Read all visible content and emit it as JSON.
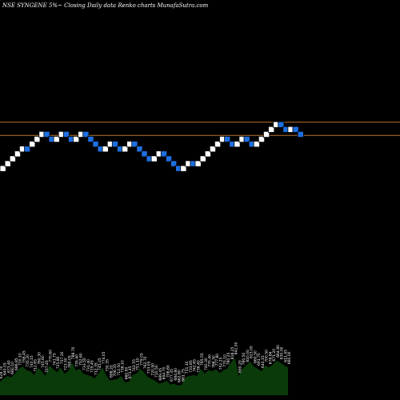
{
  "chart_data": {
    "type": "renko",
    "title": "NSE SYNGENE 5%~   Closing Daily data  Renko  charts MunafaSutra.com",
    "colors": {
      "background": "#000000",
      "up_brick": "#ffffff",
      "down_brick": "#1e6fe0",
      "brick_border": "#000000",
      "hlines": "#b8742a",
      "volume_fill": "#0a3a0a",
      "text": "#ffffff"
    },
    "bricks": [
      {
        "dir": "up",
        "level": 0
      },
      {
        "dir": "up",
        "level": 1
      },
      {
        "dir": "up",
        "level": 2
      },
      {
        "dir": "up",
        "level": 3
      },
      {
        "dir": "up",
        "level": 4
      },
      {
        "dir": "down",
        "level": 4
      },
      {
        "dir": "up",
        "level": 5
      },
      {
        "dir": "up",
        "level": 6
      },
      {
        "dir": "up",
        "level": 7
      },
      {
        "dir": "down",
        "level": 7
      },
      {
        "dir": "down",
        "level": 6
      },
      {
        "dir": "up",
        "level": 6
      },
      {
        "dir": "up",
        "level": 7
      },
      {
        "dir": "down",
        "level": 7
      },
      {
        "dir": "down",
        "level": 6
      },
      {
        "dir": "up",
        "level": 6
      },
      {
        "dir": "up",
        "level": 7
      },
      {
        "dir": "down",
        "level": 7
      },
      {
        "dir": "down",
        "level": 6
      },
      {
        "dir": "down",
        "level": 5
      },
      {
        "dir": "down",
        "level": 4
      },
      {
        "dir": "up",
        "level": 4
      },
      {
        "dir": "up",
        "level": 5
      },
      {
        "dir": "down",
        "level": 5
      },
      {
        "dir": "down",
        "level": 4
      },
      {
        "dir": "up",
        "level": 4
      },
      {
        "dir": "up",
        "level": 5
      },
      {
        "dir": "down",
        "level": 5
      },
      {
        "dir": "down",
        "level": 4
      },
      {
        "dir": "down",
        "level": 3
      },
      {
        "dir": "down",
        "level": 2
      },
      {
        "dir": "up",
        "level": 2
      },
      {
        "dir": "up",
        "level": 3
      },
      {
        "dir": "down",
        "level": 3
      },
      {
        "dir": "down",
        "level": 2
      },
      {
        "dir": "down",
        "level": 1
      },
      {
        "dir": "down",
        "level": 0
      },
      {
        "dir": "up",
        "level": 0
      },
      {
        "dir": "up",
        "level": 1
      },
      {
        "dir": "down",
        "level": 1
      },
      {
        "dir": "up",
        "level": 1
      },
      {
        "dir": "up",
        "level": 2
      },
      {
        "dir": "up",
        "level": 3
      },
      {
        "dir": "up",
        "level": 4
      },
      {
        "dir": "up",
        "level": 5
      },
      {
        "dir": "up",
        "level": 6
      },
      {
        "dir": "down",
        "level": 6
      },
      {
        "dir": "down",
        "level": 5
      },
      {
        "dir": "up",
        "level": 5
      },
      {
        "dir": "up",
        "level": 6
      },
      {
        "dir": "down",
        "level": 6
      },
      {
        "dir": "down",
        "level": 5
      },
      {
        "dir": "up",
        "level": 5
      },
      {
        "dir": "up",
        "level": 6
      },
      {
        "dir": "up",
        "level": 7
      },
      {
        "dir": "up",
        "level": 8
      },
      {
        "dir": "up",
        "level": 9
      },
      {
        "dir": "down",
        "level": 9
      },
      {
        "dir": "down",
        "level": 8
      },
      {
        "dir": "up",
        "level": 8
      },
      {
        "dir": "down",
        "level": 8
      },
      {
        "dir": "down",
        "level": 7
      }
    ],
    "horizontal_levels": [
      9.5,
      6.8
    ],
    "volume_labels": [
      "628.70",
      "640.05",
      "673.40",
      "660.10",
      "686.85",
      "720.10",
      "756.45",
      "735.20",
      "740.15",
      "712.65",
      "760.30",
      "745.60",
      "707.45",
      "770.60",
      "741.75",
      "725.80",
      "757.20",
      "723.50",
      "760.05",
      "788.70",
      "735.40",
      "752.60",
      "733.50",
      "731.40",
      "729.45",
      "712.35",
      "745.25",
      "774.05",
      "730.35",
      "698.20",
      "706.35",
      "712.50",
      "736.10",
      "660.90",
      "673.45",
      "742.55",
      "751.10",
      "779.05",
      "762.70",
      "733.05",
      "720.90",
      "710.50",
      "689.45",
      "694.70",
      "706.60",
      "677.35",
      "684.80",
      "662.80",
      "661.75",
      "731.10",
      "733.85",
      "742.65",
      "736.40",
      "785.55",
      "740.30",
      "770.40",
      "766.30",
      "777.80",
      "752.25",
      "770.10",
      "780.25",
      "818.25",
      "841.00",
      "690.20",
      "780.50",
      "810.00",
      "823.00",
      "660.50",
      "691.70",
      "640.15",
      "700.50",
      "676.84",
      "671.20",
      "664.80",
      "630.00",
      "611.45",
      "660.00"
    ],
    "volume": [
      0.28,
      0.35,
      0.4,
      0.37,
      0.45,
      0.55,
      0.6,
      0.52,
      0.5,
      0.42,
      0.57,
      0.5,
      0.4,
      0.62,
      0.55,
      0.48,
      0.58,
      0.45,
      0.5,
      0.68,
      0.52,
      0.55,
      0.45,
      0.42,
      0.4,
      0.35,
      0.45,
      0.58,
      0.42,
      0.3,
      0.32,
      0.34,
      0.4,
      0.26,
      0.28,
      0.42,
      0.45,
      0.55,
      0.48,
      0.38,
      0.34,
      0.3,
      0.24,
      0.26,
      0.3,
      0.22,
      0.24,
      0.2,
      0.22,
      0.38,
      0.4,
      0.42,
      0.4,
      0.55,
      0.45,
      0.52,
      0.5,
      0.54,
      0.46,
      0.52,
      0.56,
      0.68,
      0.78,
      0.4,
      0.56,
      0.62,
      0.7,
      0.6,
      0.55,
      0.5,
      0.62,
      0.58,
      0.64,
      0.72,
      0.68,
      0.62,
      0.58
    ]
  }
}
